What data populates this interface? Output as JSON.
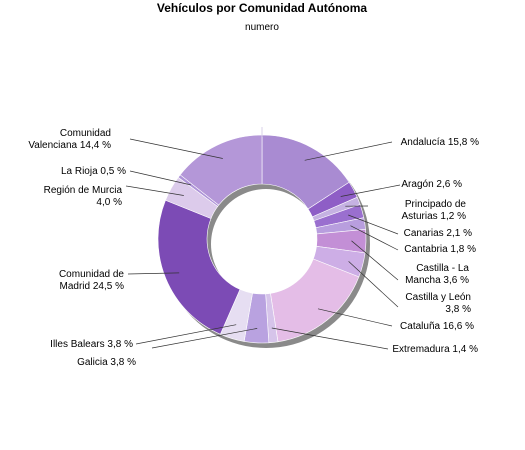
{
  "chart_data": {
    "type": "pie",
    "title": "Vehículos por Comunidad Autónoma",
    "subtitle": "numero",
    "colors": {
      "Andalucía": "#a98bd2",
      "Aragón": "#8e5ec6",
      "Principado de Asturias": "#c5b2e2",
      "Canarias": "#9a6fcf",
      "Cantabria": "#b89ede",
      "Castilla - La Mancha": "#c38fd6",
      "Castilla y León": "#cdaee6",
      "Cataluña": "#e4bde7",
      "Extremadura": "#d6c4ea",
      "Galicia": "#b9a2e0",
      "Illes Balears": "#e6def2",
      "Comunidad de Madrid": "#7c4bb5",
      "Región de Murcia": "#dccbeb",
      "La Rioja": "#ae93d8",
      "Comunidad Valenciana": "#b497d8"
    },
    "slices": [
      {
        "name": "Andalucía",
        "value": 15.8,
        "label_lines": [
          "Andalucía 15,8 %"
        ]
      },
      {
        "name": "Aragón",
        "value": 2.6,
        "label_lines": [
          "Aragón 2,6 %"
        ]
      },
      {
        "name": "Principado de Asturias",
        "value": 1.2,
        "label_lines": [
          "Principado de",
          "Asturias 1,2 %"
        ]
      },
      {
        "name": "Canarias",
        "value": 2.1,
        "label_lines": [
          "Canarias 2,1 %"
        ]
      },
      {
        "name": "Cantabria",
        "value": 1.8,
        "label_lines": [
          "Cantabria 1,8 %"
        ]
      },
      {
        "name": "Castilla - La Mancha",
        "value": 3.6,
        "label_lines": [
          "Castilla - La",
          "Mancha 3,6 %"
        ]
      },
      {
        "name": "Castilla y León",
        "value": 3.8,
        "label_lines": [
          "Castilla y León",
          "3,8 %"
        ]
      },
      {
        "name": "Cataluña",
        "value": 16.6,
        "label_lines": [
          "Cataluña 16,6 %"
        ]
      },
      {
        "name": "Extremadura",
        "value": 1.4,
        "label_lines": [
          "Extremadura 1,4 %"
        ]
      },
      {
        "name": "Galicia",
        "value": 3.8,
        "label_lines": [
          "Galicia 3,8 %"
        ]
      },
      {
        "name": "Illes Balears",
        "value": 3.8,
        "label_lines": [
          "Illes Balears 3,8 %"
        ]
      },
      {
        "name": "Comunidad de Madrid",
        "value": 24.5,
        "label_lines": [
          "Comunidad de",
          "Madrid 24,5 %"
        ]
      },
      {
        "name": "Región de Murcia",
        "value": 4.0,
        "label_lines": [
          "Región de Murcia",
          "4,0 %"
        ]
      },
      {
        "name": "La Rioja",
        "value": 0.5,
        "label_lines": [
          "La Rioja 0,5 %"
        ]
      },
      {
        "name": "Comunidad Valenciana",
        "value": 14.4,
        "label_lines": [
          "Comunidad",
          "Valenciana 14,4 %"
        ]
      }
    ]
  }
}
